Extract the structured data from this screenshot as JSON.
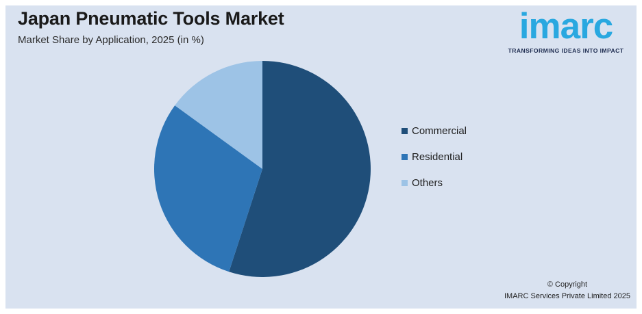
{
  "header": {
    "title": "Japan Pneumatic Tools Market",
    "subtitle": "Market Share by Application, 2025 (in %)"
  },
  "logo": {
    "wordmark": "imarc",
    "tagline": "TRANSFORMING IDEAS INTO IMPACT",
    "brand_color": "#29A8E0",
    "tagline_color": "#1D2B4F"
  },
  "chart_data": {
    "type": "pie",
    "title": "Japan Pneumatic Tools Market",
    "subtitle": "Market Share by Application, 2025 (in %)",
    "labels": [
      "Commercial",
      "Residential",
      "Others"
    ],
    "values": [
      55,
      30,
      15
    ],
    "unit": "%",
    "colors": [
      "#1F4E79",
      "#2E75B6",
      "#9DC3E6"
    ],
    "start_angle_deg": 0,
    "direction": "clockwise",
    "legend_position": "right",
    "data_labels": false,
    "background_color": "#D9E2F0"
  },
  "footer": {
    "line1": "© Copyright",
    "line2": "IMARC Services Private Limited 2025"
  }
}
